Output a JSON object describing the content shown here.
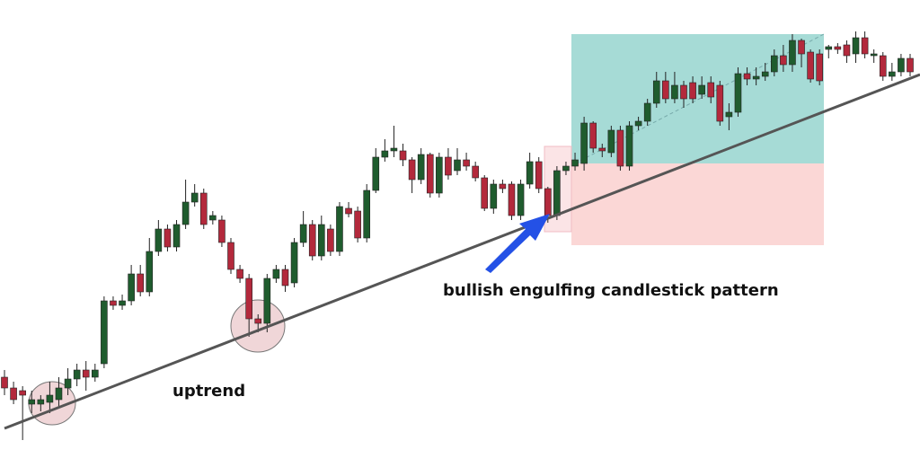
{
  "chart_data": {
    "type": "candlestick",
    "annotations": [
      "uptrend",
      "bullish engulfing candlestick pattern"
    ],
    "ylim": [
      0,
      520
    ],
    "up_color": "#1f5c2e",
    "down_color": "#b3293c",
    "open": [
      100,
      88,
      85,
      70,
      70,
      72,
      75,
      88,
      98,
      108,
      100,
      115,
      185,
      180,
      185,
      215,
      195,
      240,
      265,
      245,
      270,
      295,
      305,
      275,
      275,
      250,
      220,
      210,
      165,
      160,
      210,
      220,
      205,
      250,
      270,
      235,
      265,
      240,
      288,
      285,
      255,
      308,
      345,
      352,
      352,
      342,
      320,
      348,
      305,
      345,
      330,
      342,
      335,
      322,
      288,
      315,
      315,
      280,
      315,
      340,
      310,
      280,
      330,
      335,
      338,
      383,
      355,
      350,
      375,
      335,
      380,
      385,
      405,
      430,
      410,
      425,
      428,
      415,
      428,
      425,
      390,
      395,
      438,
      432,
      435,
      440,
      458,
      448,
      475,
      462,
      460,
      465,
      468,
      470,
      460,
      478,
      458,
      458,
      435,
      440,
      455
    ],
    "high": [
      108,
      95,
      90,
      85,
      80,
      95,
      100,
      110,
      115,
      118,
      115,
      190,
      190,
      192,
      225,
      225,
      255,
      275,
      270,
      275,
      320,
      315,
      310,
      285,
      280,
      255,
      225,
      215,
      170,
      215,
      225,
      225,
      255,
      285,
      275,
      280,
      270,
      295,
      295,
      290,
      315,
      355,
      365,
      380,
      360,
      345,
      355,
      350,
      350,
      355,
      355,
      350,
      340,
      325,
      320,
      320,
      318,
      320,
      350,
      345,
      312,
      335,
      340,
      350,
      390,
      385,
      360,
      380,
      380,
      385,
      390,
      410,
      440,
      440,
      440,
      430,
      435,
      435,
      435,
      430,
      405,
      445,
      445,
      445,
      450,
      465,
      470,
      482,
      477,
      465,
      465,
      470,
      472,
      475,
      485,
      485,
      465,
      462,
      450,
      460,
      460
    ],
    "low": [
      80,
      70,
      30,
      60,
      62,
      60,
      65,
      80,
      90,
      85,
      95,
      110,
      175,
      175,
      180,
      190,
      190,
      235,
      240,
      240,
      265,
      290,
      265,
      270,
      245,
      215,
      205,
      145,
      150,
      150,
      205,
      195,
      200,
      245,
      230,
      230,
      235,
      235,
      278,
      250,
      250,
      305,
      340,
      345,
      335,
      305,
      315,
      300,
      300,
      320,
      325,
      330,
      318,
      285,
      282,
      305,
      275,
      275,
      310,
      305,
      272,
      275,
      325,
      330,
      330,
      350,
      345,
      345,
      330,
      330,
      375,
      380,
      400,
      405,
      405,
      400,
      405,
      410,
      405,
      380,
      375,
      390,
      425,
      425,
      430,
      435,
      440,
      440,
      445,
      428,
      425,
      455,
      460,
      450,
      450,
      455,
      450,
      430,
      430,
      435,
      435
    ],
    "close": [
      88,
      75,
      80,
      75,
      75,
      80,
      88,
      98,
      108,
      100,
      108,
      185,
      180,
      185,
      215,
      195,
      240,
      265,
      245,
      270,
      295,
      305,
      270,
      280,
      250,
      220,
      210,
      165,
      160,
      210,
      220,
      202,
      250,
      270,
      235,
      270,
      240,
      290,
      282,
      255,
      308,
      345,
      352,
      355,
      342,
      320,
      348,
      305,
      345,
      325,
      342,
      335,
      322,
      288,
      315,
      310,
      280,
      315,
      340,
      310,
      280,
      330,
      335,
      342,
      383,
      355,
      352,
      375,
      335,
      380,
      385,
      405,
      430,
      410,
      425,
      410,
      410,
      425,
      412,
      385,
      395,
      438,
      432,
      435,
      440,
      458,
      448,
      475,
      460,
      432,
      430,
      468,
      465,
      458,
      478,
      460,
      460,
      435,
      440,
      455,
      440
    ]
  }
}
